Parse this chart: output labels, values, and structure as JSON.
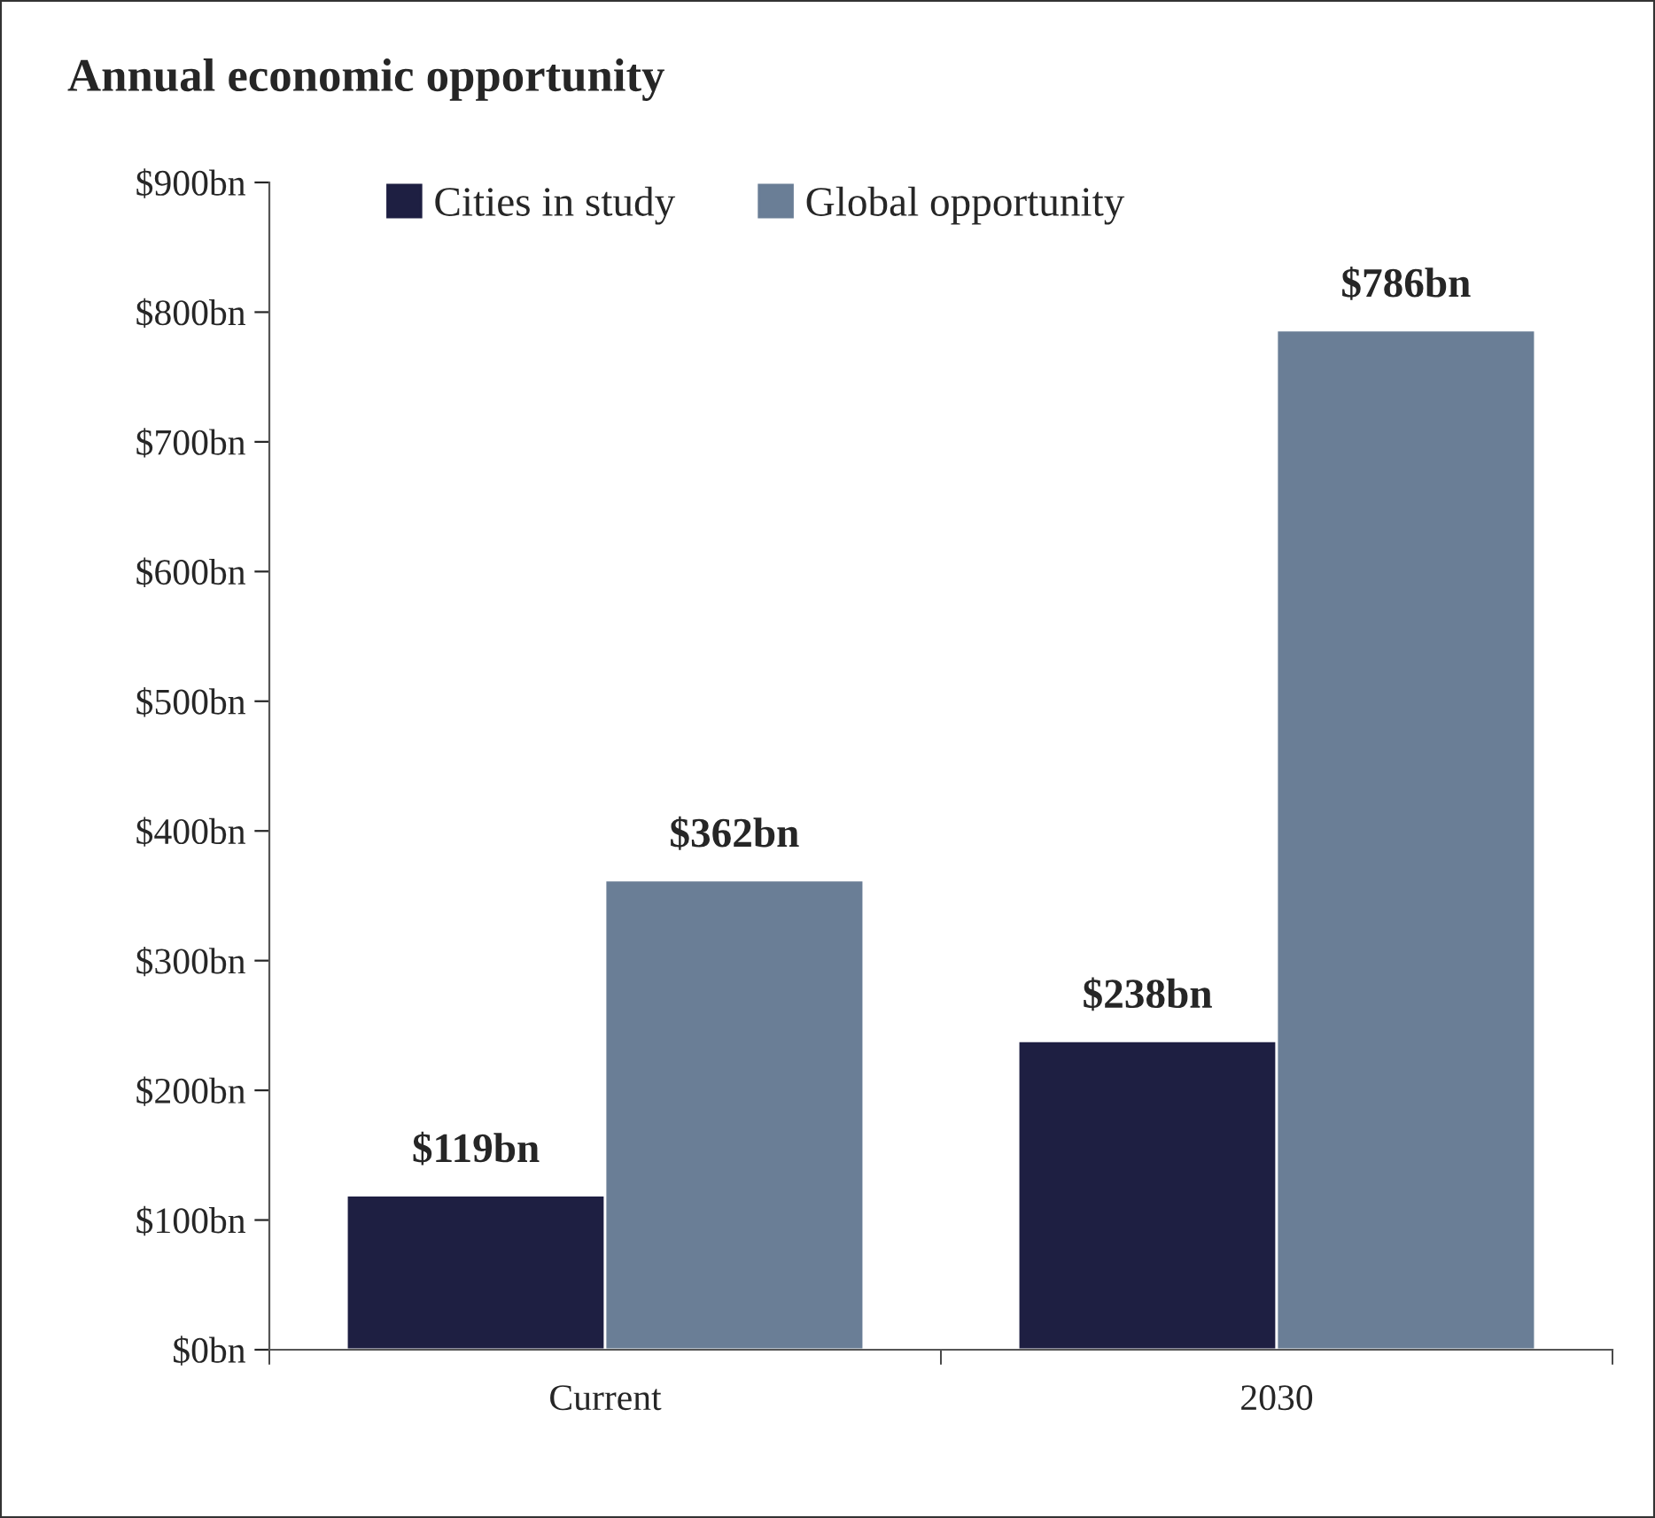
{
  "chart_data": {
    "type": "bar",
    "title": "Annual economic opportunity",
    "categories": [
      "Current",
      "2030"
    ],
    "series": [
      {
        "name": "Cities in study",
        "color": "#1e1f42",
        "values": [
          119,
          238
        ],
        "value_labels": [
          "$119bn",
          "$238bn"
        ]
      },
      {
        "name": "Global opportunity",
        "color": "#6a7e96",
        "values": [
          362,
          786
        ],
        "value_labels": [
          "$362bn",
          "$786bn"
        ]
      }
    ],
    "ylim": [
      0,
      900
    ],
    "yticks": [
      {
        "value": 0,
        "label": "$0bn"
      },
      {
        "value": 100,
        "label": "$100bn"
      },
      {
        "value": 200,
        "label": "$200bn"
      },
      {
        "value": 300,
        "label": "$300bn"
      },
      {
        "value": 400,
        "label": "$400bn"
      },
      {
        "value": 500,
        "label": "$500bn"
      },
      {
        "value": 600,
        "label": "$600bn"
      },
      {
        "value": 700,
        "label": "$700bn"
      },
      {
        "value": 800,
        "label": "$800bn"
      },
      {
        "value": 900,
        "label": "$900bn"
      }
    ],
    "grid": false,
    "legend": "top left"
  }
}
